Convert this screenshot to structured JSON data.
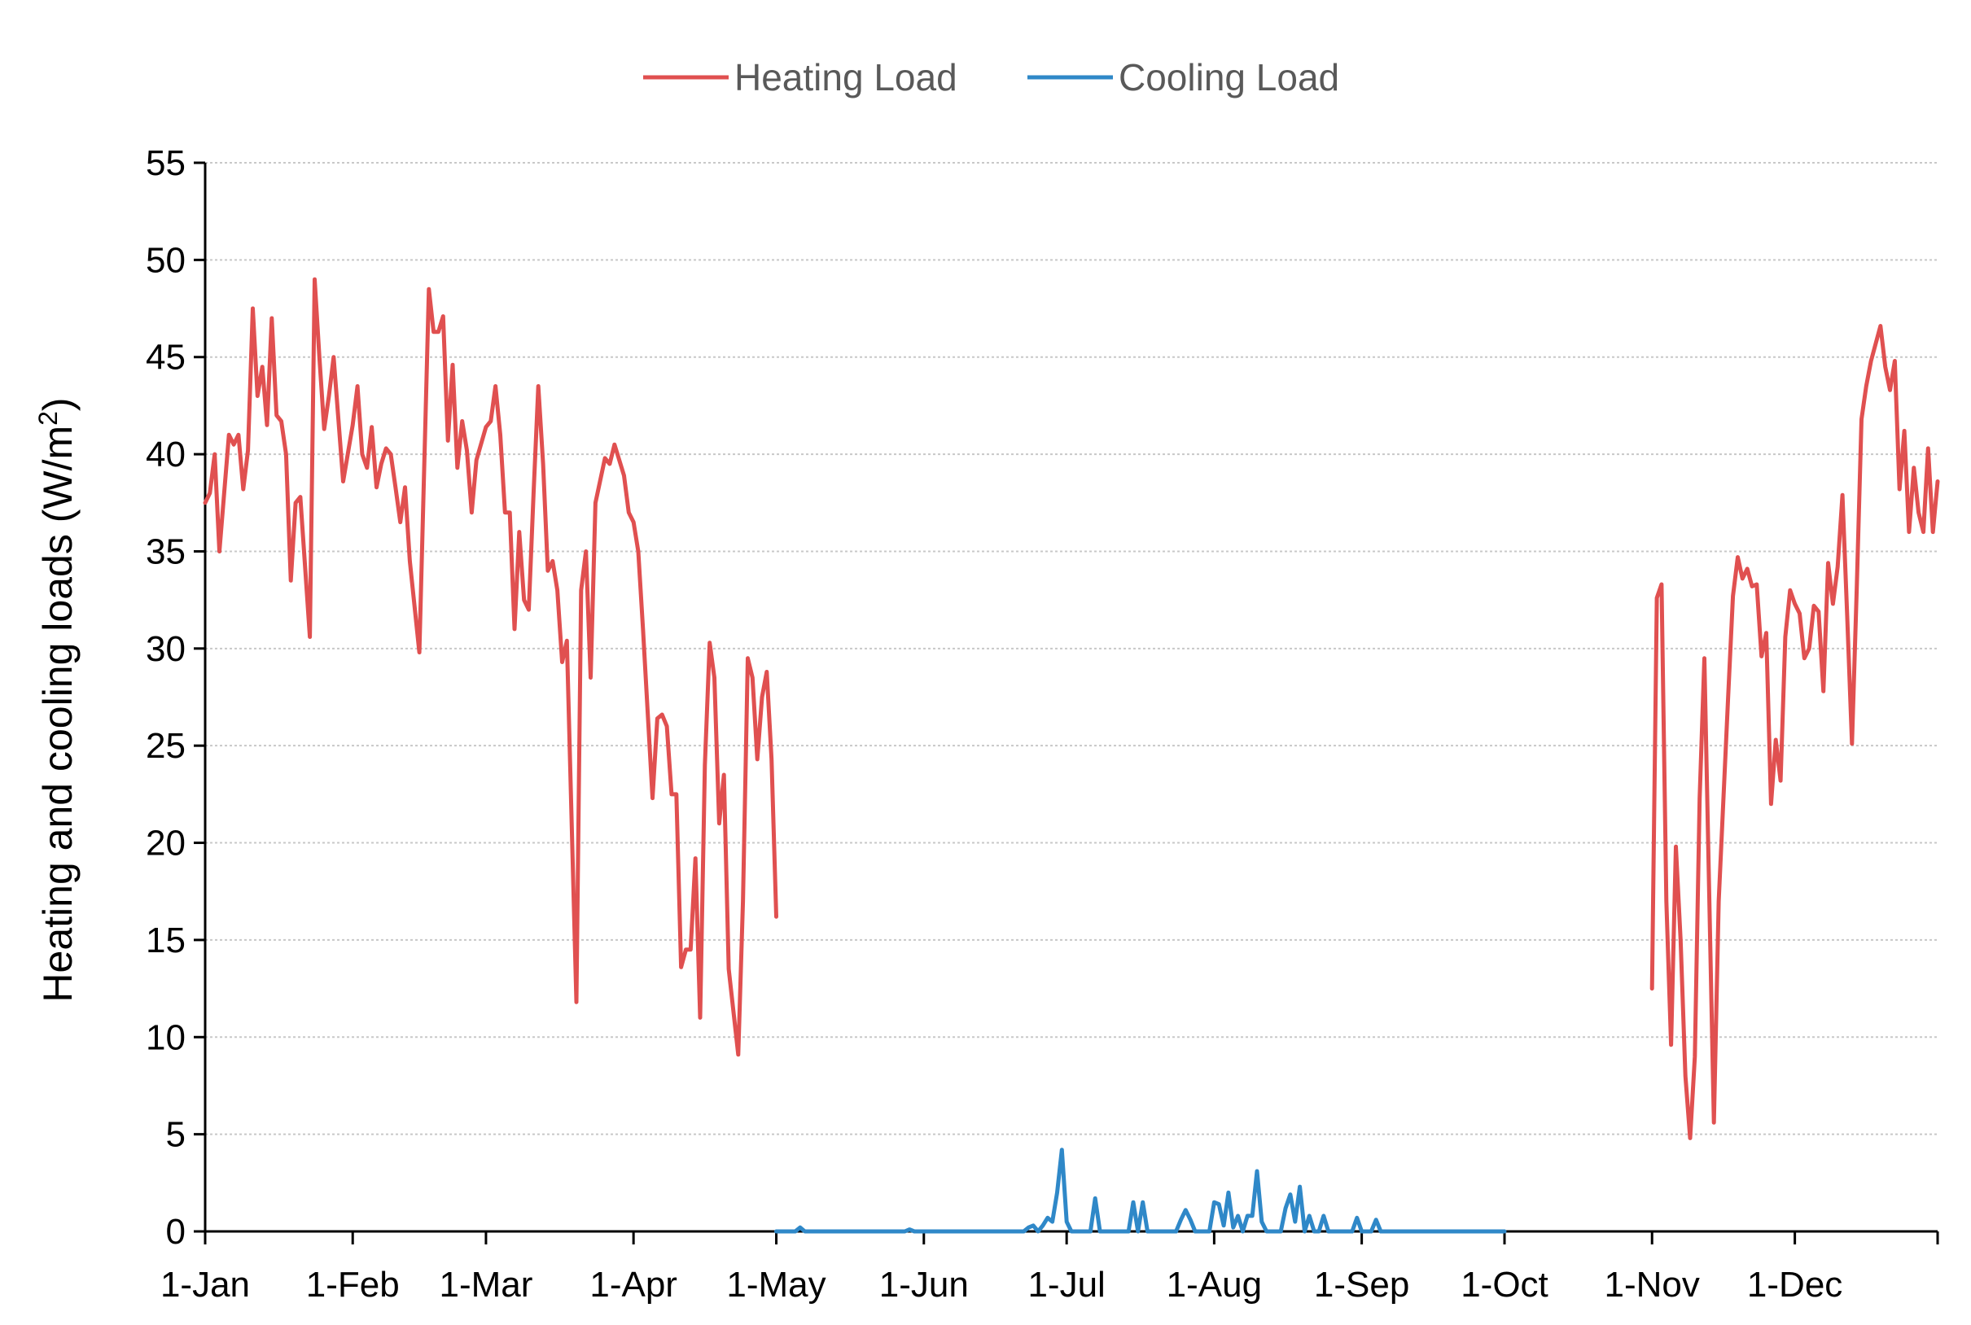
{
  "chart_data": {
    "type": "line",
    "title": "",
    "ylabel": "Heating and cooling loads (W/m²)",
    "ylabel_main": "Heating and cooling loads (W/m",
    "ylabel_sup": "2",
    "ylabel_end": ")",
    "xlabel": "",
    "ylim": [
      0,
      55
    ],
    "yticks": [
      0,
      5,
      10,
      15,
      20,
      25,
      30,
      35,
      40,
      45,
      50,
      55
    ],
    "xlim": [
      "1-Jan",
      "31-Dec"
    ],
    "xticks": [
      "1-Jan",
      "1-Feb",
      "1-Mar",
      "1-Apr",
      "1-May",
      "1-Jun",
      "1-Jul",
      "1-Aug",
      "1-Sep",
      "1-Oct",
      "1-Nov",
      "1-Dec"
    ],
    "grid": true,
    "legend_position": "top-center",
    "series": [
      {
        "name": "Heating Load",
        "color": "#e05050",
        "segments": [
          [
            [
              "1-Jan",
              37.5
            ],
            [
              "2-Jan",
              38
            ],
            [
              "3-Jan",
              40
            ],
            [
              "4-Jan",
              35
            ],
            [
              "6-Jan",
              41
            ],
            [
              "7-Jan",
              40.5
            ],
            [
              "8-Jan",
              41
            ],
            [
              "9-Jan",
              38.2
            ],
            [
              "10-Jan",
              40.2
            ],
            [
              "11-Jan",
              47.5
            ],
            [
              "12-Jan",
              43
            ],
            [
              "13-Jan",
              44.5
            ],
            [
              "14-Jan",
              41.5
            ],
            [
              "15-Jan",
              47
            ],
            [
              "16-Jan",
              42
            ],
            [
              "17-Jan",
              41.7
            ],
            [
              "18-Jan",
              40
            ],
            [
              "19-Jan",
              33.5
            ],
            [
              "20-Jan",
              37.5
            ],
            [
              "21-Jan",
              37.8
            ],
            [
              "23-Jan",
              30.6
            ],
            [
              "24-Jan",
              49
            ],
            [
              "25-Jan",
              45
            ],
            [
              "26-Jan",
              41.3
            ],
            [
              "27-Jan",
              43
            ],
            [
              "28-Jan",
              45
            ],
            [
              "30-Jan",
              38.6
            ],
            [
              "1-Feb",
              41.5
            ],
            [
              "2-Feb",
              43.5
            ],
            [
              "3-Feb",
              40
            ],
            [
              "4-Feb",
              39.3
            ],
            [
              "5-Feb",
              41.4
            ],
            [
              "6-Feb",
              38.3
            ],
            [
              "7-Feb",
              39.5
            ],
            [
              "8-Feb",
              40.3
            ],
            [
              "9-Feb",
              40
            ],
            [
              "10-Feb",
              38.3
            ],
            [
              "11-Feb",
              36.5
            ],
            [
              "12-Feb",
              38.3
            ],
            [
              "13-Feb",
              34.5
            ],
            [
              "15-Feb",
              29.8
            ],
            [
              "17-Feb",
              48.5
            ],
            [
              "18-Feb",
              46.3
            ],
            [
              "19-Feb",
              46.3
            ],
            [
              "20-Feb",
              47.1
            ],
            [
              "21-Feb",
              40.7
            ],
            [
              "22-Feb",
              44.6
            ],
            [
              "23-Feb",
              39.3
            ],
            [
              "24-Feb",
              41.7
            ],
            [
              "25-Feb",
              40.2
            ],
            [
              "26-Feb",
              37
            ],
            [
              "27-Feb",
              39.7
            ],
            [
              "1-Mar",
              41.4
            ],
            [
              "2-Mar",
              41.7
            ],
            [
              "3-Mar",
              43.5
            ],
            [
              "4-Mar",
              41
            ],
            [
              "5-Mar",
              37
            ],
            [
              "6-Mar",
              37
            ],
            [
              "7-Mar",
              31
            ],
            [
              "8-Mar",
              36
            ],
            [
              "9-Mar",
              32.5
            ],
            [
              "10-Mar",
              32
            ],
            [
              "11-Mar",
              38
            ],
            [
              "12-Mar",
              43.5
            ],
            [
              "13-Mar",
              39.5
            ],
            [
              "14-Mar",
              34
            ],
            [
              "15-Mar",
              34.5
            ],
            [
              "16-Mar",
              33
            ],
            [
              "17-Mar",
              29.3
            ],
            [
              "18-Mar",
              30.4
            ],
            [
              "20-Mar",
              11.8
            ],
            [
              "21-Mar",
              33
            ],
            [
              "22-Mar",
              35
            ],
            [
              "23-Mar",
              28.5
            ],
            [
              "24-Mar",
              37.5
            ],
            [
              "26-Mar",
              39.8
            ],
            [
              "27-Mar",
              39.5
            ],
            [
              "28-Mar",
              40.5
            ],
            [
              "30-Mar",
              38.9
            ],
            [
              "31-Mar",
              37
            ],
            [
              "1-Apr",
              36.5
            ],
            [
              "2-Apr",
              35
            ],
            [
              "3-Apr",
              31
            ],
            [
              "5-Apr",
              22.3
            ],
            [
              "6-Apr",
              26.4
            ],
            [
              "7-Apr",
              26.6
            ],
            [
              "8-Apr",
              26
            ],
            [
              "9-Apr",
              22.5
            ],
            [
              "10-Apr",
              22.5
            ],
            [
              "11-Apr",
              13.6
            ],
            [
              "12-Apr",
              14.5
            ],
            [
              "13-Apr",
              14.5
            ],
            [
              "14-Apr",
              19.2
            ],
            [
              "15-Apr",
              11
            ],
            [
              "16-Apr",
              24
            ],
            [
              "17-Apr",
              30.3
            ],
            [
              "18-Apr",
              28.5
            ],
            [
              "19-Apr",
              21
            ],
            [
              "20-Apr",
              23.5
            ],
            [
              "21-Apr",
              13.5
            ],
            [
              "23-Apr",
              9.1
            ],
            [
              "24-Apr",
              17
            ],
            [
              "25-Apr",
              29.5
            ],
            [
              "26-Apr",
              28.5
            ],
            [
              "27-Apr",
              24.3
            ],
            [
              "28-Apr",
              27.5
            ],
            [
              "29-Apr",
              28.8
            ],
            [
              "30-Apr",
              24.3
            ],
            [
              "1-May",
              16.2
            ]
          ],
          [
            [
              "1-Nov",
              12.5
            ],
            [
              "2-Nov",
              32.6
            ],
            [
              "3-Nov",
              33.3
            ],
            [
              "4-Nov",
              17
            ],
            [
              "5-Nov",
              9.6
            ],
            [
              "6-Nov",
              19.8
            ],
            [
              "7-Nov",
              15
            ],
            [
              "8-Nov",
              8
            ],
            [
              "9-Nov",
              4.8
            ],
            [
              "10-Nov",
              9
            ],
            [
              "11-Nov",
              22.3
            ],
            [
              "12-Nov",
              29.5
            ],
            [
              "14-Nov",
              5.6
            ],
            [
              "15-Nov",
              17
            ],
            [
              "17-Nov",
              27.6
            ],
            [
              "18-Nov",
              32.7
            ],
            [
              "19-Nov",
              34.7
            ],
            [
              "20-Nov",
              33.6
            ],
            [
              "21-Nov",
              34.1
            ],
            [
              "22-Nov",
              33.2
            ],
            [
              "23-Nov",
              33.3
            ],
            [
              "24-Nov",
              29.6
            ],
            [
              "25-Nov",
              30.8
            ],
            [
              "26-Nov",
              22
            ],
            [
              "27-Nov",
              25.3
            ],
            [
              "28-Nov",
              23.2
            ],
            [
              "29-Nov",
              30.6
            ],
            [
              "30-Nov",
              33
            ],
            [
              "1-Dec",
              32.3
            ],
            [
              "2-Dec",
              31.8
            ],
            [
              "3-Dec",
              29.5
            ],
            [
              "4-Dec",
              30
            ],
            [
              "5-Dec",
              32.2
            ],
            [
              "6-Dec",
              31.9
            ],
            [
              "7-Dec",
              27.8
            ],
            [
              "8-Dec",
              34.4
            ],
            [
              "9-Dec",
              32.3
            ],
            [
              "10-Dec",
              34.2
            ],
            [
              "11-Dec",
              37.9
            ],
            [
              "12-Dec",
              31.7
            ],
            [
              "13-Dec",
              25.1
            ],
            [
              "14-Dec",
              33
            ],
            [
              "15-Dec",
              41.8
            ],
            [
              "16-Dec",
              43.5
            ],
            [
              "17-Dec",
              44.8
            ],
            [
              "18-Dec",
              45.7
            ],
            [
              "19-Dec",
              46.6
            ],
            [
              "20-Dec",
              44.5
            ],
            [
              "21-Dec",
              43.3
            ],
            [
              "22-Dec",
              44.8
            ],
            [
              "23-Dec",
              38.2
            ],
            [
              "24-Dec",
              41.2
            ],
            [
              "25-Dec",
              36
            ],
            [
              "26-Dec",
              39.3
            ],
            [
              "27-Dec",
              37
            ],
            [
              "28-Dec",
              36
            ],
            [
              "29-Dec",
              40.3
            ],
            [
              "30-Dec",
              36
            ],
            [
              "31-Dec",
              38.6
            ]
          ]
        ]
      },
      {
        "name": "Cooling Load",
        "color": "#2f88c8",
        "segments": [
          [
            [
              "1-May",
              0
            ],
            [
              "5-May",
              0
            ],
            [
              "6-May",
              0.2
            ],
            [
              "7-May",
              0
            ],
            [
              "28-May",
              0
            ],
            [
              "29-May",
              0.1
            ],
            [
              "30-May",
              0
            ],
            [
              "22-Jun",
              0
            ],
            [
              "23-Jun",
              0.2
            ],
            [
              "24-Jun",
              0.3
            ],
            [
              "25-Jun",
              0
            ],
            [
              "26-Jun",
              0.3
            ],
            [
              "27-Jun",
              0.7
            ],
            [
              "28-Jun",
              0.5
            ],
            [
              "29-Jun",
              2
            ],
            [
              "30-Jun",
              4.2
            ],
            [
              "1-Jul",
              0.5
            ],
            [
              "2-Jul",
              0
            ],
            [
              "6-Jul",
              0
            ],
            [
              "7-Jul",
              1.7
            ],
            [
              "8-Jul",
              0
            ],
            [
              "14-Jul",
              0
            ],
            [
              "15-Jul",
              1.5
            ],
            [
              "16-Jul",
              0
            ],
            [
              "17-Jul",
              1.5
            ],
            [
              "18-Jul",
              0
            ],
            [
              "24-Jul",
              0
            ],
            [
              "25-Jul",
              0.6
            ],
            [
              "26-Jul",
              1.1
            ],
            [
              "27-Jul",
              0.6
            ],
            [
              "28-Jul",
              0
            ],
            [
              "31-Jul",
              0
            ],
            [
              "1-Aug",
              1.5
            ],
            [
              "2-Aug",
              1.4
            ],
            [
              "3-Aug",
              0.3
            ],
            [
              "4-Aug",
              2
            ],
            [
              "5-Aug",
              0.2
            ],
            [
              "6-Aug",
              0.8
            ],
            [
              "7-Aug",
              0
            ],
            [
              "8-Aug",
              0.8
            ],
            [
              "9-Aug",
              0.8
            ],
            [
              "10-Aug",
              3.1
            ],
            [
              "11-Aug",
              0.5
            ],
            [
              "12-Aug",
              0
            ],
            [
              "15-Aug",
              0
            ],
            [
              "16-Aug",
              1.2
            ],
            [
              "17-Aug",
              1.9
            ],
            [
              "18-Aug",
              0.5
            ],
            [
              "19-Aug",
              2.3
            ],
            [
              "20-Aug",
              0
            ],
            [
              "21-Aug",
              0.8
            ],
            [
              "22-Aug",
              0
            ],
            [
              "23-Aug",
              0
            ],
            [
              "24-Aug",
              0.8
            ],
            [
              "25-Aug",
              0
            ],
            [
              "30-Aug",
              0
            ],
            [
              "31-Aug",
              0.7
            ],
            [
              "1-Sep",
              0
            ],
            [
              "3-Sep",
              0
            ],
            [
              "4-Sep",
              0.6
            ],
            [
              "5-Sep",
              0
            ],
            [
              "1-Oct",
              0
            ]
          ]
        ]
      }
    ]
  }
}
